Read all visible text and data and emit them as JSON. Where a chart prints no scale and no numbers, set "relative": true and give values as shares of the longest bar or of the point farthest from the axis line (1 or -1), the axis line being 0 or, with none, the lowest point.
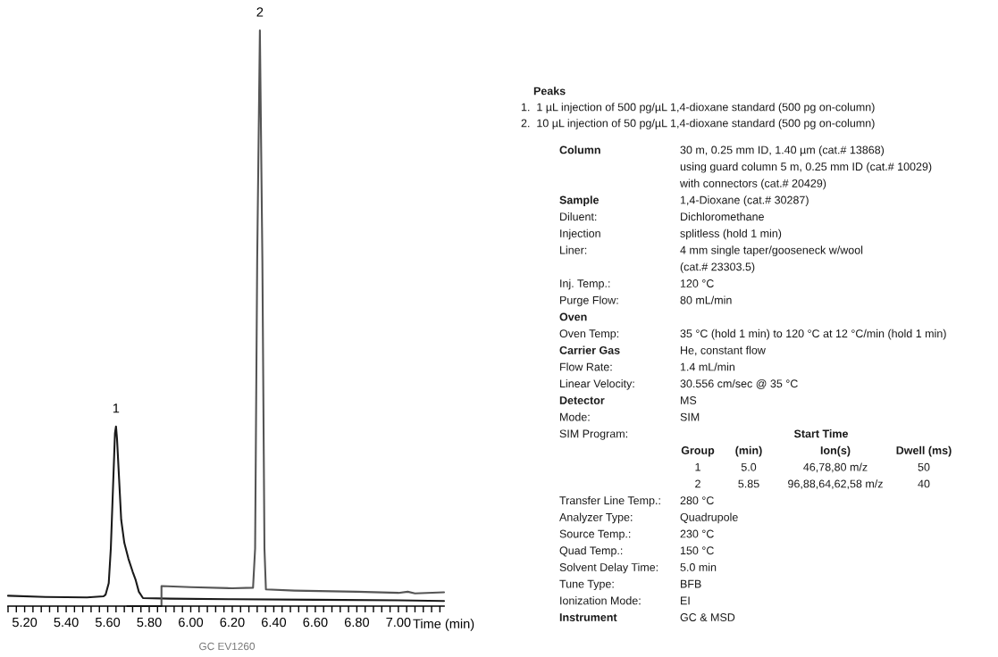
{
  "chart_data": {
    "type": "line",
    "relative": true,
    "xlabel": "Time (min)",
    "xlim": [
      5.12,
      7.22
    ],
    "xticks": [
      {
        "value": 5.12,
        "label": null
      },
      {
        "value": 5.16,
        "label": null
      },
      {
        "value": 5.2,
        "label": "5.20"
      },
      {
        "value": 5.24,
        "label": null
      },
      {
        "value": 5.28,
        "label": null
      },
      {
        "value": 5.32,
        "label": null
      },
      {
        "value": 5.36,
        "label": null
      },
      {
        "value": 5.4,
        "label": "5.40"
      },
      {
        "value": 5.44,
        "label": null
      },
      {
        "value": 5.48,
        "label": null
      },
      {
        "value": 5.52,
        "label": null
      },
      {
        "value": 5.56,
        "label": null
      },
      {
        "value": 5.6,
        "label": "5.60"
      },
      {
        "value": 5.64,
        "label": null
      },
      {
        "value": 5.68,
        "label": null
      },
      {
        "value": 5.72,
        "label": null
      },
      {
        "value": 5.76,
        "label": null
      },
      {
        "value": 5.8,
        "label": "5.80"
      },
      {
        "value": 5.84,
        "label": null
      },
      {
        "value": 5.88,
        "label": null
      },
      {
        "value": 5.92,
        "label": null
      },
      {
        "value": 5.96,
        "label": null
      },
      {
        "value": 6.0,
        "label": "6.00"
      },
      {
        "value": 6.04,
        "label": null
      },
      {
        "value": 6.08,
        "label": null
      },
      {
        "value": 6.12,
        "label": null
      },
      {
        "value": 6.16,
        "label": null
      },
      {
        "value": 6.2,
        "label": "6.20"
      },
      {
        "value": 6.24,
        "label": null
      },
      {
        "value": 6.28,
        "label": null
      },
      {
        "value": 6.32,
        "label": null
      },
      {
        "value": 6.36,
        "label": null
      },
      {
        "value": 6.4,
        "label": "6.40"
      },
      {
        "value": 6.44,
        "label": null
      },
      {
        "value": 6.48,
        "label": null
      },
      {
        "value": 6.52,
        "label": null
      },
      {
        "value": 6.56,
        "label": null
      },
      {
        "value": 6.6,
        "label": "6.60"
      },
      {
        "value": 6.64,
        "label": null
      },
      {
        "value": 6.68,
        "label": null
      },
      {
        "value": 6.72,
        "label": null
      },
      {
        "value": 6.76,
        "label": null
      },
      {
        "value": 6.8,
        "label": "6.80"
      },
      {
        "value": 6.84,
        "label": null
      },
      {
        "value": 6.88,
        "label": null
      },
      {
        "value": 6.92,
        "label": null
      },
      {
        "value": 6.96,
        "label": null
      },
      {
        "value": 7.0,
        "label": "7.00"
      },
      {
        "value": 7.04,
        "label": null
      },
      {
        "value": 7.08,
        "label": null
      },
      {
        "value": 7.12,
        "label": null
      },
      {
        "value": 7.16,
        "label": null
      },
      {
        "value": 7.2,
        "label": null
      }
    ],
    "series": [
      {
        "color": "#1a1a1a",
        "x": [
          5.12,
          5.3,
          5.5,
          5.58,
          5.59,
          5.605,
          5.615,
          5.625,
          5.635,
          5.64,
          5.645,
          5.655,
          5.665,
          5.68,
          5.7,
          5.72,
          5.735,
          5.75,
          5.77,
          5.9,
          6.2,
          6.6,
          7.0,
          7.22
        ],
        "values": [
          0.018,
          0.016,
          0.015,
          0.017,
          0.02,
          0.04,
          0.1,
          0.2,
          0.3,
          0.312,
          0.29,
          0.22,
          0.15,
          0.11,
          0.082,
          0.06,
          0.045,
          0.025,
          0.014,
          0.013,
          0.012,
          0.011,
          0.01,
          0.009
        ]
      },
      {
        "color": "#555555",
        "x": [
          5.694,
          5.859,
          5.859,
          6.0,
          6.2,
          6.3,
          6.31,
          6.32,
          6.333,
          6.345,
          6.355,
          6.362,
          6.5,
          6.8,
          7.0,
          7.045,
          7.08,
          7.22
        ],
        "values": [
          0.0,
          0.0,
          0.035,
          0.033,
          0.031,
          0.032,
          0.1,
          0.6,
          1.0,
          0.6,
          0.1,
          0.029,
          0.027,
          0.025,
          0.023,
          0.025,
          0.022,
          0.024
        ]
      }
    ],
    "annotations": [
      {
        "text": "1",
        "x": 5.64,
        "y": 0.312
      },
      {
        "text": "2",
        "x": 6.333,
        "y": 1.0
      },
      "Peaks",
      "1.  1 µL injection of 500 pg/µL 1,4-dioxane standard (500 pg on-column)",
      "2.  10 µL injection of 50 pg/µL 1,4-dioxane standard (500 pg on-column)",
      "Column",
      "30 m, 0.25 mm ID, 1.40 µm (cat.# 13868)",
      "using guard column 5 m, 0.25 mm ID (cat.# 10029)",
      "with connectors (cat.# 20429)",
      "Sample",
      "1,4-Dioxane (cat.# 30287)",
      "Diluent:",
      "Dichloromethane",
      "Injection",
      "splitless (hold 1 min)",
      "Liner:",
      "4 mm single taper/gooseneck w/wool",
      "(cat.# 23303.5)",
      "Inj. Temp.:",
      "120 °C",
      "Purge Flow:",
      "80 mL/min",
      "Oven",
      "Oven Temp:",
      "35 °C (hold 1 min) to 120 °C at 12 °C/min (hold 1 min)",
      "Carrier Gas",
      "He, constant flow",
      "Flow Rate:",
      "1.4 mL/min",
      "Linear Velocity:",
      "30.556 cm/sec @ 35 °C",
      "Detector",
      "MS",
      "Mode:",
      "SIM",
      "SIM Program:",
      "Start Time",
      "Group",
      "(min)",
      "Ion(s)",
      "Dwell (ms)",
      "1",
      "5.0",
      "46,78,80 m/z",
      "50",
      "2",
      "5.85",
      "96,88,64,62,58 m/z",
      "40",
      "Transfer Line Temp.:",
      "280 °C",
      "Analyzer Type:",
      "Quadrupole",
      "Source Temp.:",
      "230 °C",
      "Quad Temp.:",
      "150 °C",
      "Solvent Delay Time:",
      "5.0 min",
      "Tune Type:",
      "BFB",
      "Ionization Mode:",
      "EI",
      "Instrument",
      "GC & MSD",
      "GC EV1260"
    ]
  }
}
